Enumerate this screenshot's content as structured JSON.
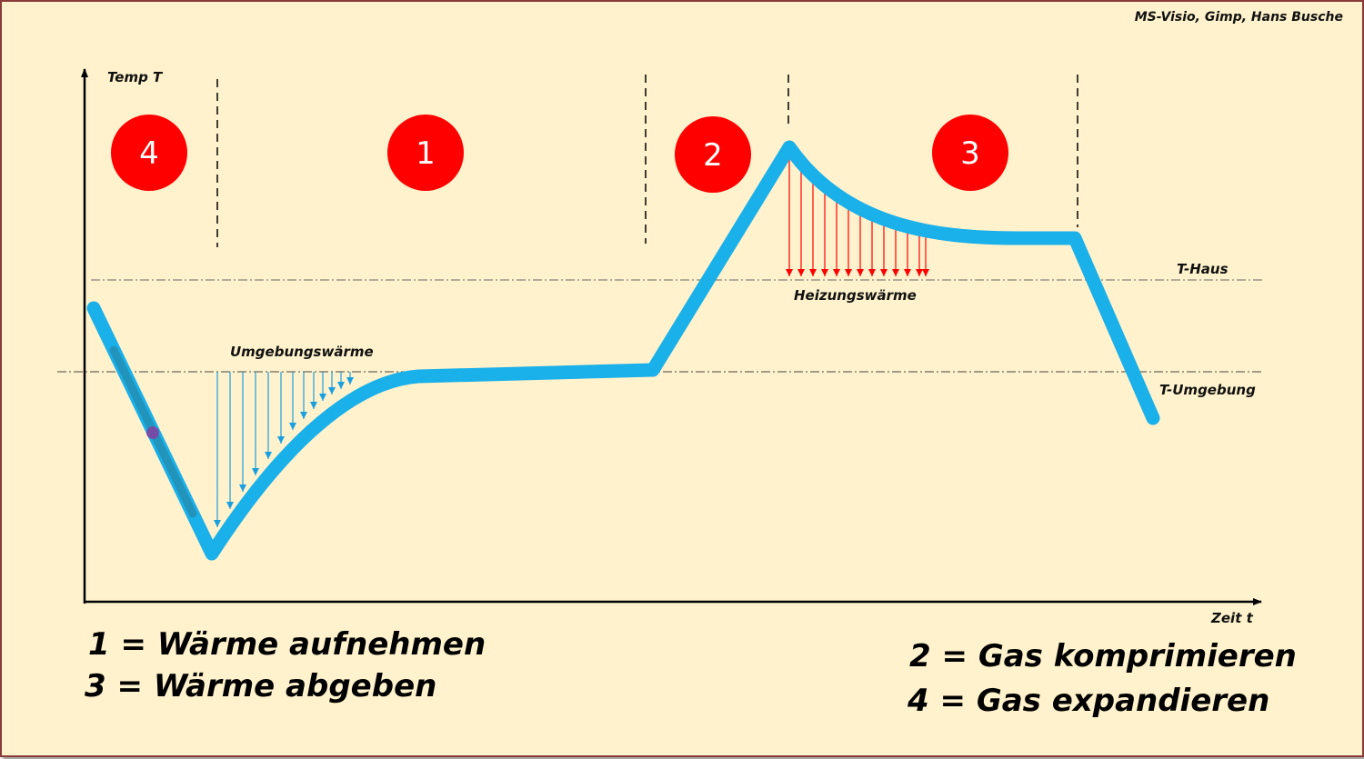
{
  "credit": "MS-Visio, Gimp, Hans Busche",
  "axes": {
    "y_label": "Temp T",
    "x_label": "Zeit t"
  },
  "reference_lines": {
    "t_haus": "T-Haus",
    "t_umgebung": "T-Umgebung"
  },
  "annotations": {
    "ambient_heat": "Umgebungswärme",
    "heating_heat": "Heizungswärme"
  },
  "phase_badges": [
    {
      "label": "4"
    },
    {
      "label": "1"
    },
    {
      "label": "2"
    },
    {
      "label": "3"
    }
  ],
  "legend": [
    {
      "text": "1 = Wärme aufnehmen"
    },
    {
      "text": "3 = Wärme abgeben"
    },
    {
      "text": "2 = Gas komprimieren"
    },
    {
      "text": "4 = Gas expandieren"
    }
  ],
  "colors": {
    "background": "#fff2cc",
    "border": "#8b3a3a",
    "curve": "#1ab0ea",
    "badge": "#ff0000",
    "ambient_arrows": "#1aa0e0",
    "heating_arrows": "#ff0000"
  }
}
